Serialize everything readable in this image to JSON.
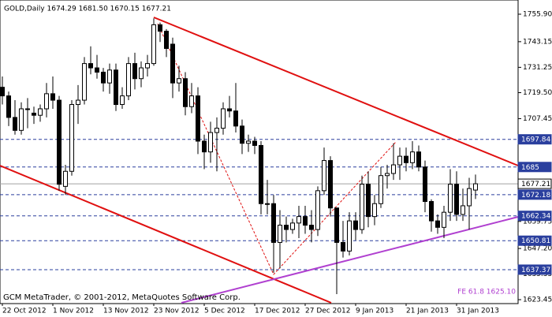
{
  "chart_data": {
    "type": "candlestick",
    "title": "GOLD,Daily  1674.29 1681.50 1670.15 1677.21",
    "footer": "GCM MetaTrader, © 2001-2012, MetaQuotes Software Corp.",
    "annotation": "FE 61.8 1625.10",
    "categories": [
      "22 Oct 2012",
      null,
      null,
      null,
      null,
      null,
      null,
      null,
      "1 Nov 2012",
      null,
      null,
      null,
      null,
      null,
      null,
      null,
      "13 Nov 2012",
      null,
      null,
      null,
      null,
      null,
      null,
      null,
      "23 Nov 2012",
      null,
      null,
      null,
      null,
      null,
      null,
      null,
      "5 Dec 2012",
      null,
      null,
      null,
      null,
      null,
      null,
      null,
      "17 Dec 2012",
      null,
      null,
      null,
      null,
      null,
      null,
      null,
      "27 Dec 2012",
      null,
      null,
      null,
      null,
      null,
      null,
      null,
      "9 Jan 2013",
      null,
      null,
      null,
      null,
      null,
      null,
      null,
      "21 Jan 2013",
      null,
      null,
      null,
      null,
      null,
      null,
      null,
      "31 Jan 2013",
      null,
      null,
      null
    ],
    "open": [
      1722,
      1718,
      1708,
      1702,
      1712,
      1710,
      1709,
      1712,
      1719,
      1716,
      1676,
      1683,
      1714,
      1716,
      1733,
      1731,
      1729,
      1724,
      1730,
      1714,
      1718,
      1733,
      1726,
      1731,
      1733,
      1751,
      1748,
      1742,
      1724,
      1726,
      1713,
      1718,
      1697,
      1692,
      1701,
      1703,
      1712,
      1711,
      1704,
      1696,
      1697,
      1695,
      1668,
      1668,
      1650,
      1658,
      1656,
      1659,
      1662,
      1658,
      1656,
      1674,
      1688,
      1666,
      1650,
      1646,
      1660,
      1656,
      1677,
      1662,
      1668,
      1681,
      1682,
      1686,
      1690,
      1687,
      1692,
      1685,
      1669,
      1660,
      1657,
      1664,
      1677,
      1663,
      1667,
      1674.29
    ],
    "high": [
      1727,
      1720,
      1716,
      1715,
      1717,
      1713,
      1714,
      1724,
      1727,
      1718,
      1686,
      1716,
      1723,
      1736,
      1741,
      1737,
      1731,
      1733,
      1733,
      1722,
      1736,
      1738,
      1734,
      1737,
      1754,
      1752,
      1749,
      1745,
      1732,
      1729,
      1724,
      1722,
      1700,
      1706,
      1708,
      1715,
      1718,
      1724,
      1707,
      1700,
      1699,
      1697,
      1679,
      1672,
      1665,
      1662,
      1661,
      1667,
      1667,
      1665,
      1676,
      1694,
      1690,
      1666,
      1660,
      1664,
      1664,
      1681,
      1683,
      1672,
      1685,
      1686,
      1696,
      1694,
      1694,
      1697,
      1695,
      1688,
      1670,
      1663,
      1667,
      1684,
      1683,
      1675,
      1680,
      1681.5
    ],
    "low": [
      1714,
      1704,
      1700,
      1700,
      1703,
      1705,
      1706,
      1708,
      1712,
      1674,
      1672,
      1681,
      1705,
      1714,
      1728,
      1726,
      1720,
      1719,
      1711,
      1712,
      1716,
      1721,
      1722,
      1727,
      1732,
      1743,
      1736,
      1717,
      1720,
      1709,
      1710,
      1691,
      1684,
      1687,
      1683,
      1700,
      1708,
      1701,
      1691,
      1692,
      1691,
      1663,
      1663,
      1636,
      1638,
      1650,
      1654,
      1652,
      1654,
      1650,
      1653,
      1672,
      1662,
      1626,
      1643,
      1644,
      1651,
      1654,
      1657,
      1658,
      1666,
      1675,
      1679,
      1679,
      1683,
      1684,
      1683,
      1664,
      1655,
      1654,
      1652,
      1660,
      1660,
      1660,
      1656,
      1670.15
    ],
    "close": [
      1718,
      1708,
      1702,
      1712,
      1712,
      1709,
      1712,
      1719,
      1716,
      1677,
      1683,
      1714,
      1716,
      1733,
      1731,
      1729,
      1724,
      1730,
      1714,
      1718,
      1733,
      1726,
      1731,
      1733,
      1751,
      1748,
      1740,
      1724,
      1726,
      1713,
      1718,
      1697,
      1692,
      1701,
      1703,
      1712,
      1711,
      1704,
      1696,
      1697,
      1695,
      1668,
      1668,
      1650,
      1658,
      1656,
      1659,
      1662,
      1658,
      1656,
      1674,
      1688,
      1666,
      1650,
      1646,
      1660,
      1656,
      1677,
      1662,
      1668,
      1681,
      1682,
      1686,
      1690,
      1687,
      1692,
      1685,
      1669,
      1660,
      1657,
      1664,
      1677,
      1663,
      1667,
      1675,
      1677.21
    ],
    "ylim": [
      1621.62,
      1762.49
    ],
    "yticks": [
      {
        "value": 1755.9,
        "label": "1755.90"
      },
      {
        "value": 1743.15,
        "label": "1743.15"
      },
      {
        "value": 1731.25,
        "label": "1731.25"
      },
      {
        "value": 1719.5,
        "label": "1719.50"
      },
      {
        "value": 1707.45,
        "label": "1707.45"
      },
      {
        "value": 1659.75,
        "label": "1659.75"
      },
      {
        "value": 1647.2,
        "label": "1647.20"
      },
      {
        "value": 1635.35,
        "label": "1635.35"
      },
      {
        "value": 1623.45,
        "label": "1623.45"
      }
    ],
    "levels": [
      1697.84,
      1685,
      {
        "value": 1672.18,
        "label": "1672.18"
      },
      {
        "value": 1662.34,
        "label": "1662.34"
      },
      {
        "value": 1650.81,
        "label": "1650.81"
      },
      {
        "value": 1637.37,
        "label": "1637.37"
      }
    ],
    "current": {
      "value": 1677.21,
      "label": "1677.21"
    },
    "level_color": "#2a3f9e",
    "up_color": "#ffffff",
    "down_color": "#000000"
  }
}
